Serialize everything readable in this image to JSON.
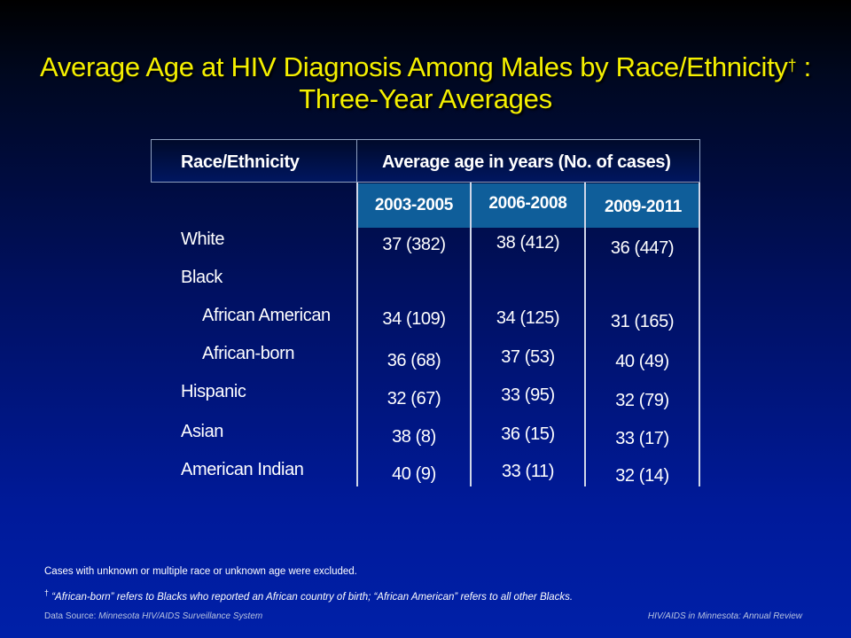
{
  "title": {
    "line1": "Average Age at HIV Diagnosis Among Males by Race/Ethnicity",
    "dagger": "†",
    "colon": " :",
    "line2": "Three-Year Averages"
  },
  "table": {
    "header_left": "Race/Ethnicity",
    "header_right": "Average age in years (No. of cases)",
    "periods": [
      "2003-2005",
      "2006-2008",
      "2009-2011"
    ],
    "rows": [
      {
        "label": "White",
        "values": [
          "37 (382)",
          "38 (412)",
          "36 (447)"
        ]
      },
      {
        "label": "Black",
        "values": [
          "",
          "",
          ""
        ]
      },
      {
        "label": "African American",
        "values": [
          "34 (109)",
          "34 (125)",
          "31 (165)"
        ]
      },
      {
        "label": "African-born",
        "values": [
          "36 (68)",
          "37 (53)",
          "40 (49)"
        ]
      },
      {
        "label": "Hispanic",
        "values": [
          "32 (67)",
          "33 (95)",
          "32 (79)"
        ]
      },
      {
        "label": "Asian",
        "values": [
          "38 (8)",
          "36 (15)",
          "33 (17)"
        ]
      },
      {
        "label": "American Indian",
        "values": [
          "40 (9)",
          "33 (11)",
          "32 (14)"
        ]
      }
    ]
  },
  "notes": {
    "excluded": "Cases with unknown or multiple race or unknown age were excluded.",
    "dagger": "†",
    "footnote": "“African-born” refers to Blacks who reported an African country of birth; “African American” refers to all other Blacks."
  },
  "footer": {
    "source_label": "Data Source:",
    "source": "Minnesota HIV/AIDS Surveillance System",
    "report": "HIV/AIDS in Minnesota: Annual Review"
  }
}
